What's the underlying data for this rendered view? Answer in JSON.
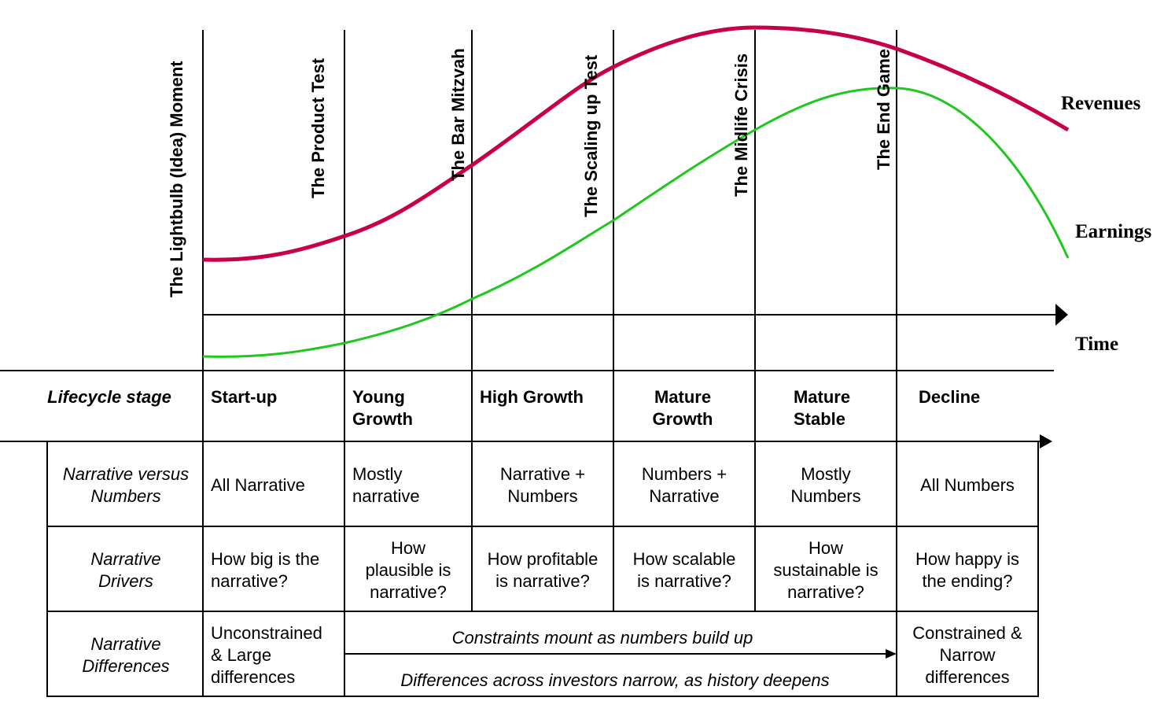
{
  "milestones": [
    "The Lightbulb (Idea) Moment",
    "The Product Test",
    "The Bar Mitzvah",
    "The Scaling up Test",
    "The Midlife Crisis",
    "The End Game"
  ],
  "curves": {
    "revenues_label": "Revenues",
    "earnings_label": "Earnings",
    "time_label": "Time",
    "revenues_color": "#c8004a",
    "earnings_color": "#1fc81f"
  },
  "table": {
    "stage_header": "Lifecycle stage",
    "stages": [
      [
        "Start-up"
      ],
      [
        "Young",
        "Growth"
      ],
      [
        "High Growth"
      ],
      [
        "Mature",
        "Growth"
      ],
      [
        "Mature",
        "Stable"
      ],
      [
        "Decline"
      ]
    ],
    "rows": [
      {
        "header": [
          "Narrative versus",
          "Numbers"
        ],
        "cells": [
          [
            "All Narrative"
          ],
          [
            "Mostly",
            "narrative"
          ],
          [
            "Narrative +",
            "Numbers"
          ],
          [
            "Numbers +",
            "Narrative"
          ],
          [
            "Mostly",
            "Numbers"
          ],
          [
            "All Numbers"
          ]
        ]
      },
      {
        "header": [
          "Narrative",
          "Drivers"
        ],
        "cells": [
          [
            "How big is the",
            "narrative?"
          ],
          [
            "How",
            "plausible is",
            "narrative?"
          ],
          [
            "How profitable",
            "is narrative?"
          ],
          [
            "How scalable",
            "is narrative?"
          ],
          [
            "How",
            "sustainable is",
            "narrative?"
          ],
          [
            "How happy is",
            "the ending?"
          ]
        ]
      }
    ],
    "differences": {
      "header": [
        "Narrative",
        "Differences"
      ],
      "startup": [
        "Unconstrained",
        "& Large",
        "differences"
      ],
      "constraints": "Constraints mount as numbers build up",
      "investors": "Differences across investors narrow, as history deepens",
      "decline": [
        "Constrained &",
        "Narrow",
        "differences"
      ]
    }
  }
}
